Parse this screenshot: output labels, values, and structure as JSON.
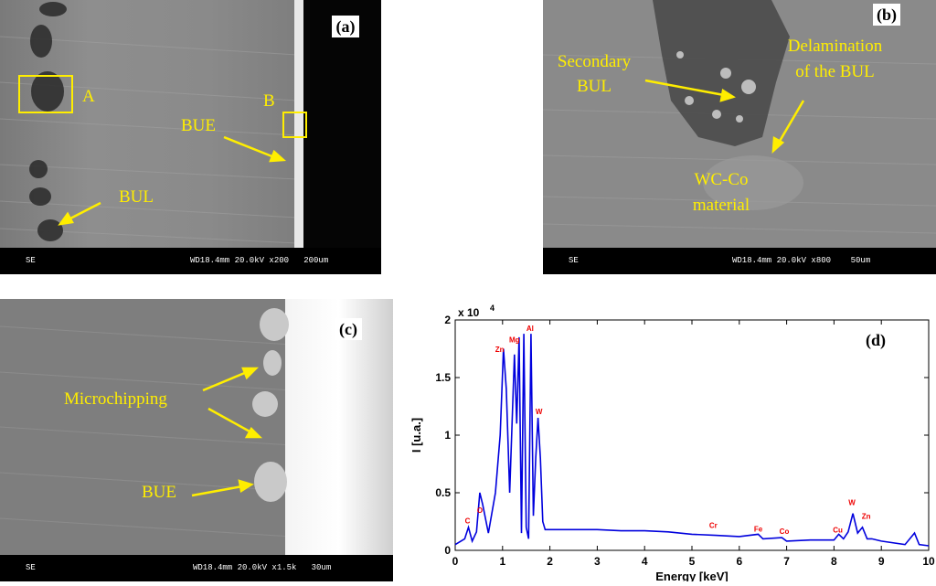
{
  "panels": {
    "a": {
      "label": "(a)",
      "scale_bar": {
        "detector": "SE",
        "info": "WD18.4mm 20.0kV x200   200um"
      },
      "annotations": {
        "box_a": "A",
        "box_b": "B",
        "bue": "BUE",
        "bul": "BUL"
      }
    },
    "b": {
      "label": "(b)",
      "scale_bar": {
        "detector": "SE",
        "info": "WD18.4mm 20.0kV x800    50um"
      },
      "annotations": {
        "secondary_bul_1": "Secondary",
        "secondary_bul_2": "BUL",
        "delam_1": "Delamination",
        "delam_2": "of the BUL",
        "wcco_1": "WC-Co",
        "wcco_2": "material"
      }
    },
    "c": {
      "label": "(c)",
      "scale_bar": {
        "detector": "SE",
        "info": "WD18.4mm 20.0kV x1.5k   30um"
      },
      "annotations": {
        "microchipping": "Microchipping",
        "bue": "BUE"
      }
    },
    "d": {
      "label": "(d)"
    }
  },
  "colors": {
    "annotation": "#ffee00",
    "spectrum": "#0000dd",
    "peak_label": "#ee0000"
  },
  "chart_data": {
    "type": "line",
    "title": "",
    "xlabel": "Energy [keV]",
    "ylabel": "I [u.a.]",
    "y_multiplier_label": "x 10",
    "y_multiplier_exp": "4",
    "xlim": [
      0,
      10
    ],
    "ylim": [
      0,
      20000
    ],
    "xticks": [
      "0",
      "1",
      "2",
      "3",
      "4",
      "5",
      "6",
      "7",
      "8",
      "9",
      "10"
    ],
    "yticks": [
      "0",
      "0.5",
      "1",
      "1.5",
      "2"
    ],
    "series": [
      {
        "x": [
          0.0,
          0.2,
          0.28,
          0.36,
          0.45,
          0.52,
          0.58,
          0.7,
          0.85,
          0.95,
          1.02,
          1.08,
          1.15,
          1.2,
          1.25,
          1.3,
          1.35,
          1.4,
          1.45,
          1.5,
          1.55,
          1.6,
          1.65,
          1.7,
          1.75,
          1.8,
          1.85,
          1.9,
          2.0,
          2.5,
          3.0,
          3.5,
          4.0,
          4.5,
          5.0,
          5.5,
          6.0,
          6.4,
          6.5,
          6.9,
          7.0,
          7.5,
          8.0,
          8.1,
          8.2,
          8.3,
          8.4,
          8.5,
          8.6,
          8.7,
          8.8,
          9.0,
          9.5,
          9.7,
          9.8,
          10.0
        ],
        "y": [
          500,
          1000,
          2000,
          800,
          1600,
          5000,
          4000,
          1500,
          5000,
          10000,
          17500,
          14000,
          5000,
          11000,
          17000,
          11000,
          18500,
          1500,
          18800,
          2000,
          1000,
          18800,
          3000,
          8000,
          11500,
          8000,
          2500,
          1800,
          1800,
          1800,
          1800,
          1700,
          1700,
          1600,
          1400,
          1300,
          1200,
          1400,
          1000,
          1100,
          800,
          900,
          900,
          1400,
          1000,
          1600,
          3200,
          1500,
          2000,
          1000,
          1000,
          800,
          500,
          1500,
          500,
          400
        ]
      }
    ],
    "peak_labels": [
      {
        "text": "C",
        "x": 0.26,
        "y": 2100
      },
      {
        "text": "O",
        "x": 0.52,
        "y": 3000
      },
      {
        "text": "Zn",
        "x": 0.94,
        "y": 17000
      },
      {
        "text": "Mg",
        "x": 1.25,
        "y": 17800
      },
      {
        "text": "Al",
        "x": 1.58,
        "y": 18800
      },
      {
        "text": "W",
        "x": 1.77,
        "y": 11600
      },
      {
        "text": "Cr",
        "x": 5.45,
        "y": 1700
      },
      {
        "text": "Fe",
        "x": 6.4,
        "y": 1400
      },
      {
        "text": "Co",
        "x": 6.95,
        "y": 1200
      },
      {
        "text": "Cu",
        "x": 8.08,
        "y": 1300
      },
      {
        "text": "W",
        "x": 8.38,
        "y": 3700
      },
      {
        "text": "Zn",
        "x": 8.68,
        "y": 2500
      }
    ]
  }
}
